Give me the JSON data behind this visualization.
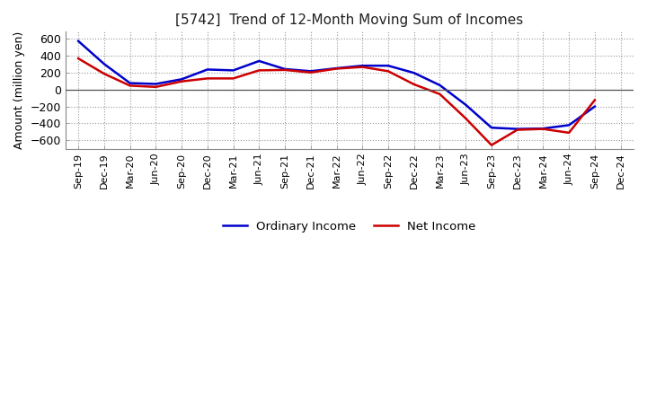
{
  "title": "[5742]  Trend of 12-Month Moving Sum of Incomes",
  "ylabel": "Amount (million yen)",
  "ylim": [
    -700,
    680
  ],
  "yticks": [
    -600,
    -400,
    -200,
    0,
    200,
    400,
    600
  ],
  "background_color": "#ffffff",
  "plot_bg_color": "#ffffff",
  "ordinary_income_color": "#0000cc",
  "net_income_color": "#cc0000",
  "legend_labels": [
    "Ordinary Income",
    "Net Income"
  ],
  "x_labels": [
    "Sep-19",
    "Dec-19",
    "Mar-20",
    "Jun-20",
    "Sep-20",
    "Dec-20",
    "Mar-21",
    "Jun-21",
    "Sep-21",
    "Dec-21",
    "Mar-22",
    "Jun-22",
    "Sep-22",
    "Dec-22",
    "Mar-23",
    "Jun-23",
    "Sep-23",
    "Dec-23",
    "Mar-24",
    "Jun-24",
    "Sep-24",
    "Dec-24"
  ],
  "ordinary_income": [
    570,
    300,
    75,
    65,
    120,
    235,
    225,
    335,
    240,
    215,
    250,
    280,
    280,
    195,
    50,
    -180,
    -450,
    -465,
    -460,
    -420,
    -200,
    null
  ],
  "net_income": [
    365,
    185,
    45,
    30,
    95,
    130,
    130,
    225,
    230,
    200,
    245,
    265,
    215,
    60,
    -55,
    -340,
    -655,
    -475,
    -465,
    -510,
    -125,
    null
  ]
}
